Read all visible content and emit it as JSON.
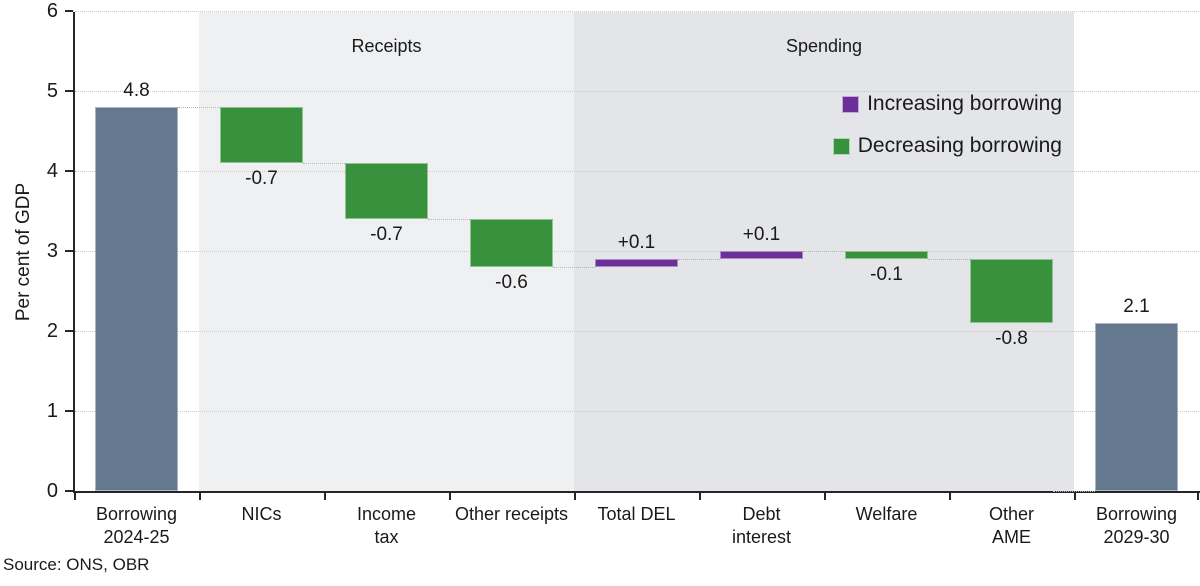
{
  "source": "Source: ONS, OBR",
  "colors": {
    "total_bar": "#64798F",
    "increase_bar": "#6B2F97",
    "decrease_bar": "#38913C",
    "receipts_band": "#EFF0F2",
    "spending_band": "#E4E5E9",
    "axis": "#262626",
    "gridline": "#C9C9CD",
    "text": "#1A1A1A"
  },
  "chart_data": {
    "type": "bar",
    "subtype": "waterfall",
    "title": "",
    "xlabel": "",
    "ylabel": "Per cent of GDP",
    "ylim": [
      0,
      6
    ],
    "yticks": [
      0,
      1,
      2,
      3,
      4,
      5,
      6
    ],
    "grid": "horizontal-dotted",
    "legend_position": "top-right-inside",
    "categories": [
      "Borrowing\n2024-25",
      "NICs",
      "Income\ntax",
      "Other receipts",
      "Total DEL",
      "Debt\ninterest",
      "Welfare",
      "Other\nAME",
      "Borrowing\n2029-30"
    ],
    "bars": [
      {
        "name": "Borrowing 2024-25",
        "from": 0.0,
        "to": 4.8,
        "value": 4.8,
        "label": "4.8",
        "label_pos": "above",
        "role": "total"
      },
      {
        "name": "NICs",
        "from": 4.8,
        "to": 4.1,
        "value": -0.7,
        "label": "-0.7",
        "label_pos": "below",
        "role": "decrease"
      },
      {
        "name": "Income tax",
        "from": 4.1,
        "to": 3.4,
        "value": -0.7,
        "label": "-0.7",
        "label_pos": "below",
        "role": "decrease"
      },
      {
        "name": "Other receipts",
        "from": 3.4,
        "to": 2.8,
        "value": -0.6,
        "label": "-0.6",
        "label_pos": "below",
        "role": "decrease"
      },
      {
        "name": "Total DEL",
        "from": 2.8,
        "to": 2.9,
        "value": 0.1,
        "label": "+0.1",
        "label_pos": "above",
        "role": "increase"
      },
      {
        "name": "Debt interest",
        "from": 2.9,
        "to": 3.0,
        "value": 0.1,
        "label": "+0.1",
        "label_pos": "above",
        "role": "increase"
      },
      {
        "name": "Welfare",
        "from": 3.0,
        "to": 2.9,
        "value": -0.1,
        "label": "-0.1",
        "label_pos": "below",
        "role": "decrease"
      },
      {
        "name": "Other AME",
        "from": 2.9,
        "to": 2.1,
        "value": -0.8,
        "label": "-0.8",
        "label_pos": "below",
        "role": "decrease"
      },
      {
        "name": "Borrowing 2029-30",
        "from": 0.0,
        "to": 2.1,
        "value": 2.1,
        "label": "2.1",
        "label_pos": "above",
        "role": "total"
      }
    ],
    "regions": [
      {
        "label": "Receipts",
        "start_slot": 1,
        "end_slot": 4
      },
      {
        "label": "Spending",
        "start_slot": 4,
        "end_slot": 8
      }
    ],
    "legend": [
      {
        "label": "Increasing borrowing",
        "color": "#6B2F97"
      },
      {
        "label": "Decreasing borrowing",
        "color": "#38913C"
      }
    ]
  }
}
